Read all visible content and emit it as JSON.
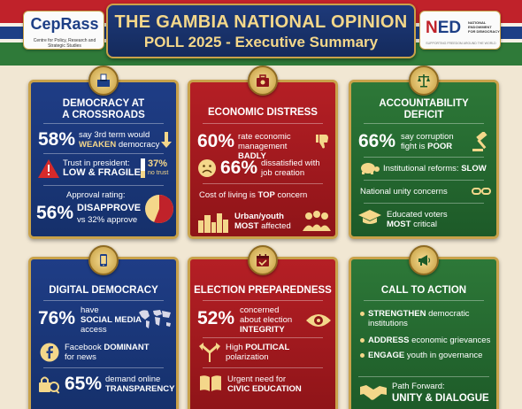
{
  "header": {
    "title_line1": "THE GAMBIA NATIONAL OPINION",
    "title_line2": "POLL 2025 - Executive Summary",
    "left_logo": {
      "name": "CepRass",
      "subtitle": "Centre for Policy, Research and Strategic Studies"
    },
    "right_logo": {
      "name_prefix": "N",
      "name_rest": "ED",
      "subtitle": "NATIONAL ENDOWMENT FOR DEMOCRACY",
      "tagline": "SUPPORTING FREEDOM AROUND THE WORLD"
    }
  },
  "colors": {
    "blue": "#1f3d86",
    "red": "#b51f25",
    "green": "#2d7838",
    "gold": "#c9a24a",
    "highlight": "#f4d78a"
  },
  "panels": {
    "democracy": {
      "icon": "ballot-box-icon",
      "title_line1": "DEMOCRACY AT",
      "title_line2": "A CROSSROADS",
      "stat1_value": "58%",
      "stat1_text": "say 3rd term would",
      "stat1_emph": "WEAKEN",
      "stat1_tail": "democracy",
      "trust_label": "Trust in president:",
      "trust_emph": "LOW & FRAGILE",
      "trust_value": "37%",
      "trust_note": "no trust",
      "trust_fraction": 0.37,
      "approval_label": "Approval rating:",
      "approval_value": "56%",
      "approval_emph": "DISAPPROVE",
      "approval_vs": "vs 32% approve",
      "disapprove_fraction": 0.56
    },
    "economic": {
      "icon": "briefcase-money-icon",
      "title": "ECONOMIC DISTRESS",
      "stat1_value": "60%",
      "stat1_line1": "rate economic",
      "stat1_line2a": "management",
      "stat1_line2b": "BADLY",
      "stat2_value": "66%",
      "stat2_line1": "dissatisfied with",
      "stat2_line2": "job creation",
      "cost_text": "Cost of living is",
      "cost_emph": "TOP",
      "cost_tail": "concern",
      "urban_line1": "Urban/youth",
      "urban_emph": "MOST",
      "urban_tail": "affected"
    },
    "accountability": {
      "icon": "scales-icon",
      "title_line1": "ACCOUNTABILITY",
      "title_line2": "DEFICIT",
      "stat1_value": "66%",
      "stat1_line1": "say corruption",
      "stat1_line2a": "fight is",
      "stat1_line2b": "POOR",
      "reform_text": "Institutional reforms:",
      "reform_emph": "SLOW",
      "unity_text": "National unity concerns",
      "edu_line1": "Educated voters",
      "edu_emph": "MOST",
      "edu_tail": "critical"
    },
    "digital": {
      "icon": "smartphone-icon",
      "title": "DIGITAL DEMOCRACY",
      "stat1_value": "76%",
      "stat1_line1": "have",
      "stat1_line2": "SOCIAL MEDIA",
      "stat1_line3": "access",
      "fb_line1a": "Facebook",
      "fb_emph": "DOMINANT",
      "fb_line2": "for news",
      "stat2_value": "65%",
      "stat2_line1": "demand online",
      "stat2_line2": "TRANSPARENCY"
    },
    "election": {
      "icon": "ballot-calendar-icon",
      "title": "ELECTION PREPAREDNESS",
      "stat1_value": "52%",
      "stat1_line1": "concerned",
      "stat1_line2": "about election",
      "stat1_line3": "INTEGRITY",
      "polar_line1a": "High",
      "polar_emph": "POLITICAL",
      "polar_line2": "polarization",
      "civic_line1": "Urgent need for",
      "civic_line2": "CIVIC EDUCATION"
    },
    "action": {
      "icon": "megaphone-icon",
      "title": "CALL TO ACTION",
      "bullets": [
        {
          "emph": "STRENGTHEN",
          "rest": "democratic",
          "rest2": "institutions"
        },
        {
          "emph": "ADDRESS",
          "rest": "economic grievances",
          "rest2": ""
        },
        {
          "emph": "ENGAGE",
          "rest": "youth in governance",
          "rest2": ""
        }
      ],
      "path_label": "Path Forward:",
      "path_emph": "UNITY & DIALOGUE"
    }
  }
}
